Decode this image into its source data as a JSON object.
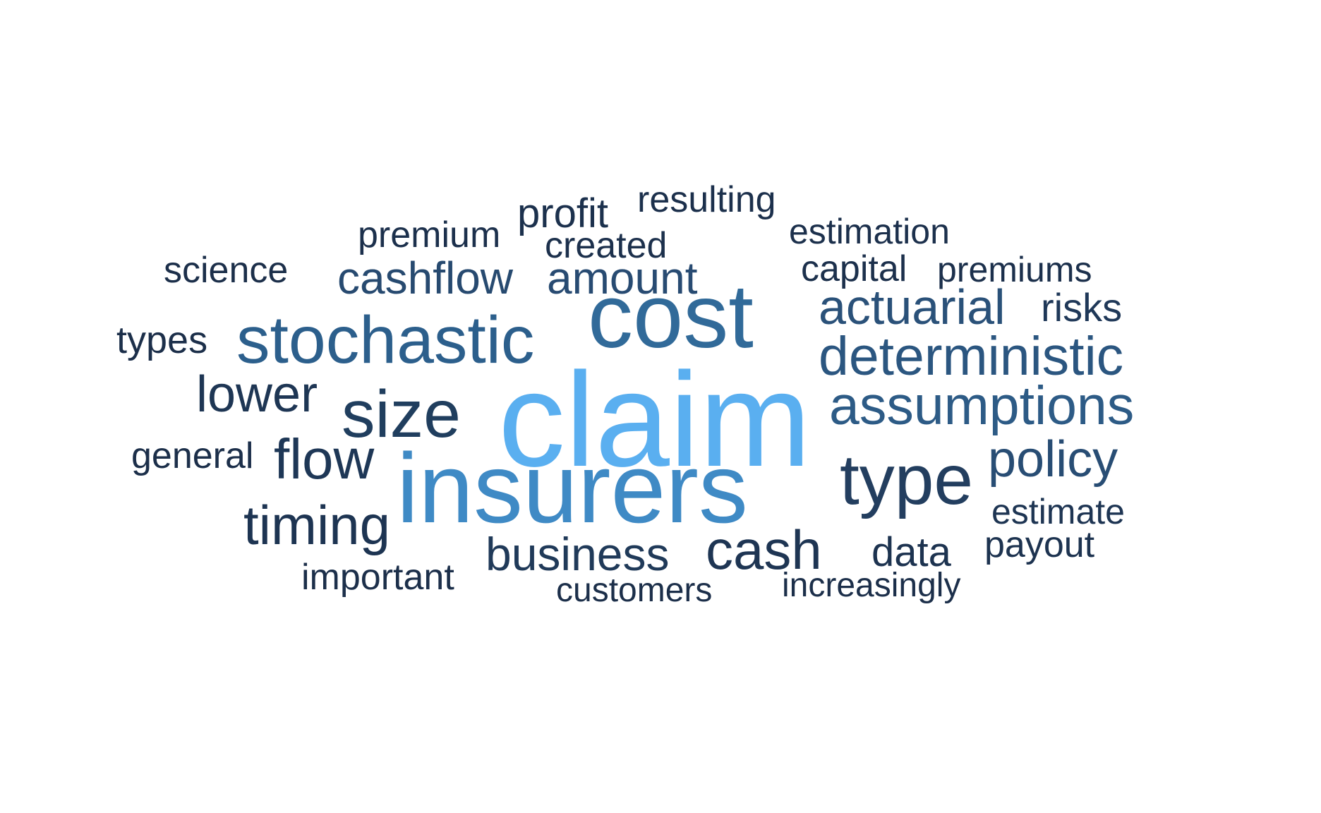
{
  "word_cloud": {
    "words": [
      {
        "text": "claim",
        "color": "#5aaff0"
      },
      {
        "text": "insurers",
        "color": "#3f8ac5"
      },
      {
        "text": "cost",
        "color": "#316a99"
      },
      {
        "text": "stochastic",
        "color": "#2c5f8c"
      },
      {
        "text": "size",
        "color": "#203e5e"
      },
      {
        "text": "type",
        "color": "#233e5f"
      },
      {
        "text": "assumptions",
        "color": "#2d5b86"
      },
      {
        "text": "deterministic",
        "color": "#2b5680"
      },
      {
        "text": "policy",
        "color": "#284d74"
      },
      {
        "text": "actuarial",
        "color": "#2a5179"
      },
      {
        "text": "cashflow",
        "color": "#274a70"
      },
      {
        "text": "amount",
        "color": "#284b72"
      },
      {
        "text": "lower",
        "color": "#1e3654"
      },
      {
        "text": "flow",
        "color": "#1e3756"
      },
      {
        "text": "timing",
        "color": "#1d3452"
      },
      {
        "text": "cash",
        "color": "#1e3553"
      },
      {
        "text": "business",
        "color": "#203a59"
      },
      {
        "text": "risks",
        "color": "#1f3858"
      },
      {
        "text": "data",
        "color": "#1d3350"
      },
      {
        "text": "payout",
        "color": "#1d3350"
      },
      {
        "text": "estimate",
        "color": "#1e3553"
      },
      {
        "text": "profit",
        "color": "#1c314d"
      },
      {
        "text": "premium",
        "color": "#1c304c"
      },
      {
        "text": "created",
        "color": "#1c304c"
      },
      {
        "text": "resulting",
        "color": "#1c304c"
      },
      {
        "text": "estimation",
        "color": "#1c304c"
      },
      {
        "text": "capital",
        "color": "#1c304c"
      },
      {
        "text": "premiums",
        "color": "#1c304c"
      },
      {
        "text": "science",
        "color": "#1c2f4a"
      },
      {
        "text": "types",
        "color": "#1c2f4a"
      },
      {
        "text": "general",
        "color": "#1c2f4a"
      },
      {
        "text": "important",
        "color": "#1c2f4a"
      },
      {
        "text": "customers",
        "color": "#1c2f4a"
      },
      {
        "text": "increasingly",
        "color": "#1c2f4a"
      }
    ]
  }
}
